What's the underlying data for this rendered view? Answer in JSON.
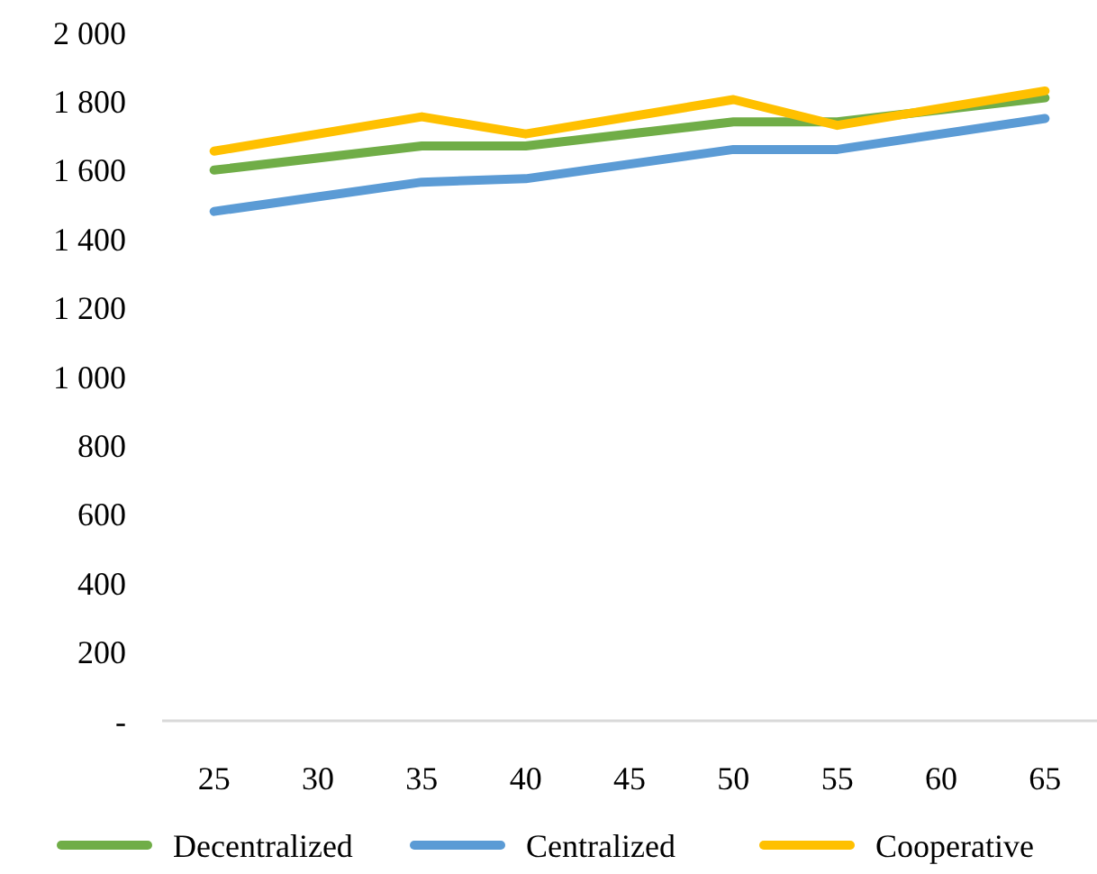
{
  "chart_data": {
    "type": "line",
    "x": [
      25,
      35,
      40,
      50,
      55,
      65
    ],
    "series": [
      {
        "name": "Decentralized",
        "color": "#70ad47",
        "values": [
          1600,
          1670,
          1670,
          1740,
          1740,
          1810
        ]
      },
      {
        "name": "Centralized",
        "color": "#5b9bd5",
        "values": [
          1480,
          1565,
          1575,
          1660,
          1660,
          1750
        ]
      },
      {
        "name": "Cooperative",
        "color": "#ffc000",
        "values": [
          1655,
          1755,
          1705,
          1805,
          1730,
          1830
        ]
      }
    ],
    "xlim": [
      22.5,
      67.5
    ],
    "xticks": [
      25,
      30,
      35,
      40,
      45,
      50,
      55,
      60,
      65
    ],
    "ylim": [
      0,
      2000
    ],
    "yticks": [
      {
        "value": 0,
        "label": "-"
      },
      {
        "value": 200,
        "label": "200"
      },
      {
        "value": 400,
        "label": "400"
      },
      {
        "value": 600,
        "label": "600"
      },
      {
        "value": 800,
        "label": "800"
      },
      {
        "value": 1000,
        "label": "1 000"
      },
      {
        "value": 1200,
        "label": "1 200"
      },
      {
        "value": 1400,
        "label": "1 400"
      },
      {
        "value": 1600,
        "label": "1 600"
      },
      {
        "value": 1800,
        "label": "1 800"
      },
      {
        "value": 2000,
        "label": "2 000"
      }
    ],
    "grid": false,
    "legend": "bottom",
    "marker": "none",
    "line_style": "solid"
  }
}
